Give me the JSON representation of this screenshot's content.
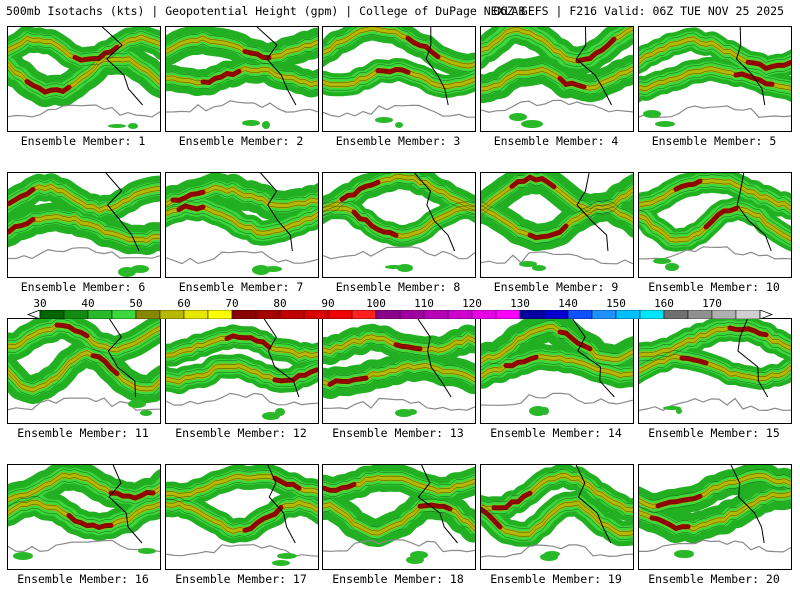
{
  "header": {
    "left": "500mb Isotachs (kts) | Geopotential Height (gpm) | College of DuPage NEXLAB",
    "right": "06Z GEFS | F216 Valid: 06Z TUE NOV 25 2025"
  },
  "panels": [
    {
      "caption": "Ensemble Member: 1"
    },
    {
      "caption": "Ensemble Member: 2"
    },
    {
      "caption": "Ensemble Member: 3"
    },
    {
      "caption": "Ensemble Member: 4"
    },
    {
      "caption": "Ensemble Member: 5"
    },
    {
      "caption": "Ensemble Member: 6"
    },
    {
      "caption": "Ensemble Member: 7"
    },
    {
      "caption": "Ensemble Member: 8"
    },
    {
      "caption": "Ensemble Member: 9"
    },
    {
      "caption": "Ensemble Member: 10"
    },
    {
      "caption": "Ensemble Member: 11"
    },
    {
      "caption": "Ensemble Member: 12"
    },
    {
      "caption": "Ensemble Member: 13"
    },
    {
      "caption": "Ensemble Member: 14"
    },
    {
      "caption": "Ensemble Member: 15"
    },
    {
      "caption": "Ensemble Member: 16"
    },
    {
      "caption": "Ensemble Member: 17"
    },
    {
      "caption": "Ensemble Member: 18"
    },
    {
      "caption": "Ensemble Member: 19"
    },
    {
      "caption": "Ensemble Member: 20"
    }
  ],
  "legend": {
    "labels": [
      "30",
      "40",
      "50",
      "60",
      "70",
      "80",
      "90",
      "100",
      "110",
      "120",
      "130",
      "140",
      "150",
      "160",
      "170"
    ],
    "colors": [
      "#006400",
      "#118c11",
      "#28b828",
      "#3cd83c",
      "#888800",
      "#b8b800",
      "#e6e600",
      "#ffff00",
      "#8b0000",
      "#a50000",
      "#c00000",
      "#d80000",
      "#ee0000",
      "#ff2020",
      "#8b008b",
      "#a000a0",
      "#b800b8",
      "#d000d0",
      "#e800e8",
      "#ff00ff",
      "#0000a0",
      "#0000d0",
      "#1050ff",
      "#1e90ff",
      "#00bfff",
      "#00e5ff",
      "#707070",
      "#909090",
      "#b0b0b0",
      "#d0d0d0"
    ]
  }
}
